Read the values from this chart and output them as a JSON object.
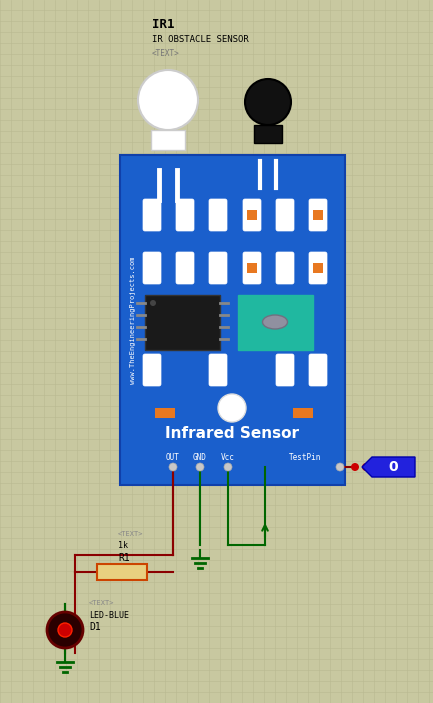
{
  "bg_color": "#c8c8a0",
  "grid_color": "#b8b890",
  "board_color": "#1a5fcc",
  "title": "IR1",
  "subtitle": "IR OBSTACLE SENSOR",
  "subtext": "<TEXT>",
  "infrared_label": "Infrared Sensor",
  "website_text": "www.TheEngineeringProjects.com",
  "pin_labels": [
    "OUT",
    "GND",
    "Vcc"
  ],
  "testpin_label": "TestPin",
  "r1_label": "R1",
  "r1_value": "1k",
  "r1_text": "<TEXT>",
  "d1_label": "D1",
  "d1_type": "LED-BLUE",
  "d1_text": "<TEXT>",
  "logic_value": "0",
  "wire_red": "#8b0000",
  "wire_green": "#006600",
  "slot_orange": "#e87820",
  "teal_color": "#20b8a0",
  "gray_oval": "#9090a0"
}
